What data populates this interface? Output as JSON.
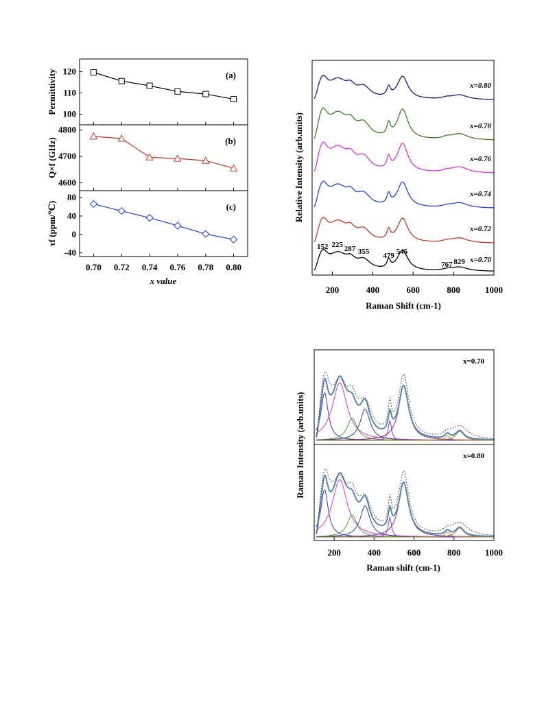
{
  "chart_data": [
    {
      "type": "line",
      "panel": "a",
      "panel_label": "(a)",
      "x": [
        0.7,
        0.72,
        0.74,
        0.76,
        0.78,
        0.8
      ],
      "series": [
        {
          "values": [
            119.7,
            115.6,
            113.4,
            110.7,
            109.5,
            107.1
          ],
          "color": "#000000",
          "marker": "square"
        }
      ],
      "ylabel": "Permittivity",
      "ylim": [
        95,
        126
      ],
      "yticks": [
        "100",
        "110",
        "120"
      ]
    },
    {
      "type": "line",
      "panel": "b",
      "panel_label": "(b)",
      "x": [
        0.7,
        0.72,
        0.74,
        0.76,
        0.78,
        0.8
      ],
      "series": [
        {
          "values": [
            4776,
            4768,
            4697,
            4692,
            4684,
            4655
          ],
          "color": "#c0392b",
          "marker": "triangle"
        }
      ],
      "ylabel": "Q×f (GHz)",
      "ylim": [
        4570,
        4820
      ],
      "yticks": [
        "4600",
        "4700",
        "4800"
      ]
    },
    {
      "type": "line",
      "panel": "c",
      "panel_label": "(c)",
      "x": [
        0.7,
        0.72,
        0.74,
        0.76,
        0.78,
        0.8
      ],
      "series": [
        {
          "values": [
            66,
            51,
            36,
            19,
            1,
            -11
          ],
          "color": "#1f3fd0",
          "marker": "diamond"
        }
      ],
      "ylabel": "τf (ppm/℃)",
      "ylim": [
        -48,
        95
      ],
      "yticks": [
        "-40",
        "0",
        "40",
        "80"
      ],
      "xlabel": "x value",
      "xticks": [
        "0.70",
        "0.72",
        "0.74",
        "0.76",
        "0.78",
        "0.80"
      ]
    },
    {
      "type": "line",
      "xlabel": "Raman Shift (cm-1)",
      "ylabel": "Relative Intensity (arb.units)",
      "xlim": [
        100,
        1000
      ],
      "xticks": [
        "200",
        "400",
        "600",
        "800",
        "1000"
      ],
      "series": [
        {
          "name": "x=0.80",
          "color": "#1a1a6e"
        },
        {
          "name": "x=0.78",
          "color": "#3d7a1e"
        },
        {
          "name": "x=0.76",
          "color": "#d633d6"
        },
        {
          "name": "x=0.74",
          "color": "#2a3fd6"
        },
        {
          "name": "x=0.72",
          "color": "#c0392b"
        },
        {
          "name": "x=0.70",
          "color": "#000000"
        }
      ],
      "peak_labels": [
        "152",
        "225",
        "287",
        "355",
        "479",
        "545",
        "767",
        "829"
      ],
      "peak_positions": [
        152,
        225,
        287,
        355,
        479,
        545,
        767,
        829
      ]
    },
    {
      "type": "line",
      "xlabel": "Raman shift (cm-1)",
      "ylabel": "Raman Intensity (arb.units)",
      "xlim": [
        100,
        1000
      ],
      "xticks": [
        "200",
        "400",
        "600",
        "800",
        "1000"
      ],
      "panels": [
        {
          "label": "x=0.70"
        },
        {
          "label": "x=0.80"
        }
      ],
      "peak_positions": [
        152,
        225,
        287,
        355,
        479,
        545,
        767,
        829
      ],
      "component_colors": [
        "#3a3aa8",
        "#d633d6",
        "#5a9a2a",
        "#2a3f8a",
        "#8a3ad6",
        "#7a2a7a",
        "#c09020",
        "#8a8a20"
      ],
      "fit_color": "#5a84b0"
    }
  ]
}
